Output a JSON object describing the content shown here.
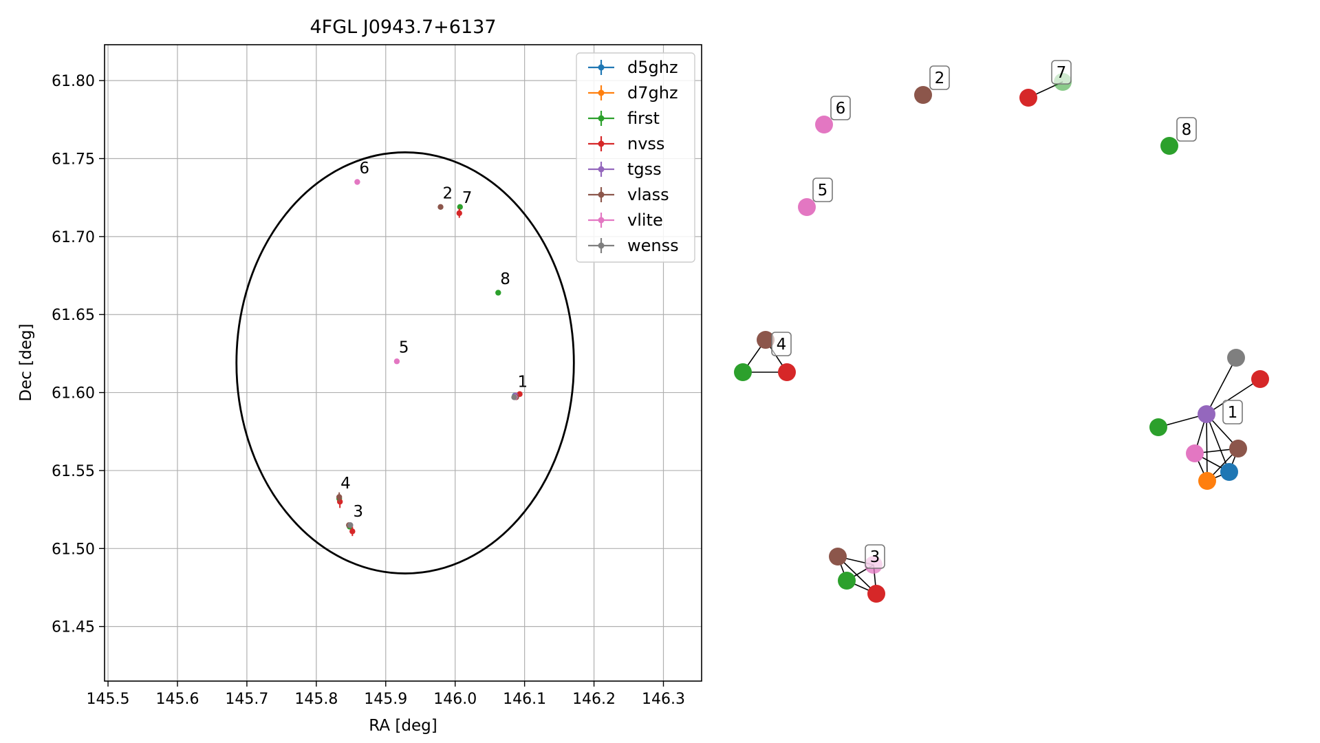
{
  "chart_data": [
    {
      "type": "scatter",
      "title": "4FGL J0943.7+6137",
      "xlabel": "RA [deg]",
      "ylabel": "Dec [deg]",
      "xlim": [
        145.495,
        146.355
      ],
      "ylim": [
        61.415,
        61.823
      ],
      "xticks": [
        145.5,
        145.6,
        145.7,
        145.8,
        145.9,
        146.0,
        146.1,
        146.2,
        146.3
      ],
      "yticks": [
        61.45,
        61.5,
        61.55,
        61.6,
        61.65,
        61.7,
        61.75,
        61.8
      ],
      "xtick_labels": [
        "145.5",
        "145.6",
        "145.7",
        "145.8",
        "145.9",
        "146.0",
        "146.1",
        "146.2",
        "146.3"
      ],
      "ytick_labels": [
        "61.45",
        "61.50",
        "61.55",
        "61.60",
        "61.65",
        "61.70",
        "61.75",
        "61.80"
      ],
      "grid": true,
      "legend_position": "top-right",
      "ellipse": {
        "center": [
          145.928,
          61.619
        ],
        "semi_axis_ra": 0.243,
        "semi_axis_dec": 0.135,
        "color": "#000000"
      },
      "series": [
        {
          "name": "d5ghz",
          "color": "#1f77b4",
          "points": [
            {
              "x": 146.086,
              "y": 61.598,
              "yerr": 0.0
            }
          ]
        },
        {
          "name": "d7ghz",
          "color": "#ff7f0e",
          "points": [
            {
              "x": 146.087,
              "y": 61.598,
              "yerr": 0.0
            }
          ]
        },
        {
          "name": "first",
          "color": "#2ca02c",
          "points": [
            {
              "x": 146.007,
              "y": 61.719,
              "yerr": 0.0
            },
            {
              "x": 146.062,
              "y": 61.664,
              "yerr": 0.0
            },
            {
              "x": 145.833,
              "y": 61.532,
              "yerr": 0.0
            },
            {
              "x": 145.848,
              "y": 61.514,
              "yerr": 0.0
            },
            {
              "x": 146.087,
              "y": 61.597,
              "yerr": 0.0
            }
          ]
        },
        {
          "name": "nvss",
          "color": "#d62728",
          "points": [
            {
              "x": 146.006,
              "y": 61.715,
              "yerr": 0.003
            },
            {
              "x": 146.093,
              "y": 61.599,
              "yerr": 0.0
            },
            {
              "x": 145.834,
              "y": 61.53,
              "yerr": 0.004
            },
            {
              "x": 145.852,
              "y": 61.511,
              "yerr": 0.003
            }
          ]
        },
        {
          "name": "tgss",
          "color": "#9467bd",
          "points": [
            {
              "x": 146.087,
              "y": 61.598,
              "yerr": 0.0
            }
          ]
        },
        {
          "name": "vlass",
          "color": "#8c564b",
          "points": [
            {
              "x": 145.979,
              "y": 61.719,
              "yerr": 0.0
            },
            {
              "x": 145.833,
              "y": 61.533,
              "yerr": 0.003
            },
            {
              "x": 145.847,
              "y": 61.515,
              "yerr": 0.0
            },
            {
              "x": 146.088,
              "y": 61.597,
              "yerr": 0.0
            }
          ]
        },
        {
          "name": "vlite",
          "color": "#e377c2",
          "points": [
            {
              "x": 145.859,
              "y": 61.735,
              "yerr": 0.0
            },
            {
              "x": 145.916,
              "y": 61.62,
              "yerr": 0.0
            },
            {
              "x": 145.849,
              "y": 61.515,
              "yerr": 0.0
            },
            {
              "x": 146.086,
              "y": 61.597,
              "yerr": 0.0
            }
          ]
        },
        {
          "name": "wenss",
          "color": "#7f7f7f",
          "points": [
            {
              "x": 146.085,
              "y": 61.597,
              "yerr": 0.0
            },
            {
              "x": 145.849,
              "y": 61.515,
              "yerr": 0.0
            }
          ]
        }
      ],
      "annotations": [
        {
          "text": "1",
          "x": 146.089,
          "y": 61.6
        },
        {
          "text": "2",
          "x": 145.981,
          "y": 61.721
        },
        {
          "text": "3",
          "x": 145.852,
          "y": 61.517
        },
        {
          "text": "4",
          "x": 145.834,
          "y": 61.535
        },
        {
          "text": "5",
          "x": 145.918,
          "y": 61.622
        },
        {
          "text": "6",
          "x": 145.861,
          "y": 61.737
        },
        {
          "text": "7",
          "x": 146.009,
          "y": 61.718
        },
        {
          "text": "8",
          "x": 146.064,
          "y": 61.666
        }
      ]
    },
    {
      "type": "network",
      "groups": [
        {
          "label": "1",
          "nodes": [
            {
              "id": "1-tgss",
              "color": "#9467bd"
            },
            {
              "id": "1-wenss",
              "color": "#7f7f7f"
            },
            {
              "id": "1-nvss",
              "color": "#d62728"
            },
            {
              "id": "1-first",
              "color": "#2ca02c"
            },
            {
              "id": "1-vlite",
              "color": "#e377c2"
            },
            {
              "id": "1-vlass",
              "color": "#8c564b"
            },
            {
              "id": "1-d5ghz",
              "color": "#1f77b4"
            },
            {
              "id": "1-d7ghz",
              "color": "#ff7f0e"
            }
          ],
          "edges": [
            [
              "1-tgss",
              "1-wenss"
            ],
            [
              "1-tgss",
              "1-nvss"
            ],
            [
              "1-tgss",
              "1-first"
            ],
            [
              "1-tgss",
              "1-vlite"
            ],
            [
              "1-tgss",
              "1-vlass"
            ],
            [
              "1-tgss",
              "1-d5ghz"
            ],
            [
              "1-tgss",
              "1-d7ghz"
            ],
            [
              "1-vlite",
              "1-vlass"
            ],
            [
              "1-vlite",
              "1-d5ghz"
            ],
            [
              "1-vlite",
              "1-d7ghz"
            ],
            [
              "1-vlass",
              "1-d5ghz"
            ],
            [
              "1-vlass",
              "1-d7ghz"
            ],
            [
              "1-d5ghz",
              "1-d7ghz"
            ]
          ]
        },
        {
          "label": "2",
          "nodes": [
            {
              "id": "2-vlass",
              "color": "#8c564b"
            }
          ],
          "edges": []
        },
        {
          "label": "3",
          "nodes": [
            {
              "id": "3-vlass",
              "color": "#8c564b"
            },
            {
              "id": "3-first",
              "color": "#2ca02c"
            },
            {
              "id": "3-vlite",
              "color": "#e377c2"
            },
            {
              "id": "3-nvss",
              "color": "#d62728"
            }
          ],
          "edges": [
            [
              "3-vlass",
              "3-first"
            ],
            [
              "3-vlass",
              "3-vlite"
            ],
            [
              "3-vlass",
              "3-nvss"
            ],
            [
              "3-first",
              "3-vlite"
            ],
            [
              "3-first",
              "3-nvss"
            ],
            [
              "3-vlite",
              "3-nvss"
            ]
          ]
        },
        {
          "label": "4",
          "nodes": [
            {
              "id": "4-vlass",
              "color": "#8c564b"
            },
            {
              "id": "4-first",
              "color": "#2ca02c"
            },
            {
              "id": "4-nvss",
              "color": "#d62728"
            }
          ],
          "edges": [
            [
              "4-vlass",
              "4-first"
            ],
            [
              "4-vlass",
              "4-nvss"
            ],
            [
              "4-first",
              "4-nvss"
            ]
          ]
        },
        {
          "label": "5",
          "nodes": [
            {
              "id": "5-vlite",
              "color": "#e377c2"
            }
          ],
          "edges": []
        },
        {
          "label": "6",
          "nodes": [
            {
              "id": "6-vlite",
              "color": "#e377c2"
            }
          ],
          "edges": []
        },
        {
          "label": "7",
          "nodes": [
            {
              "id": "7-nvss",
              "color": "#d62728"
            },
            {
              "id": "7-first",
              "color": "#2ca02c"
            }
          ],
          "edges": [
            [
              "7-nvss",
              "7-first"
            ]
          ]
        },
        {
          "label": "8",
          "nodes": [
            {
              "id": "8-first",
              "color": "#2ca02c"
            }
          ],
          "edges": []
        }
      ]
    }
  ]
}
